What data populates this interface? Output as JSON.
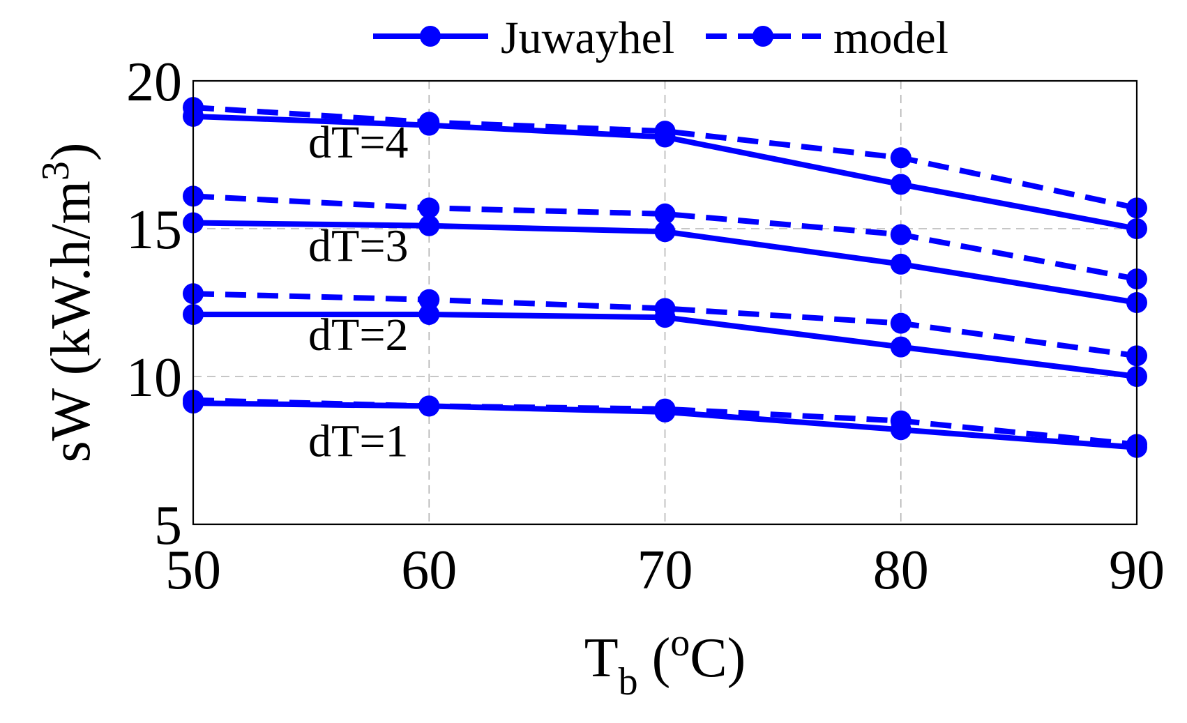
{
  "chart_data": {
    "type": "line",
    "xlabel": {
      "main": "T",
      "sub": "b",
      "pre": " (",
      "sup": "o",
      "post": "C)"
    },
    "ylabel": {
      "main": "sW (kW.h/m",
      "sup": "3",
      "post": ")"
    },
    "x": [
      50,
      60,
      70,
      80,
      90
    ],
    "xlim": [
      50,
      90
    ],
    "ylim": [
      5,
      20
    ],
    "xticks": [
      50,
      60,
      70,
      80,
      90
    ],
    "yticks": [
      5,
      10,
      15,
      20
    ],
    "grid": true,
    "legend_position": "top",
    "color": "#0000ff",
    "legend": [
      {
        "label": "Juwayhel",
        "style": "solid"
      },
      {
        "label": "model",
        "style": "dashed"
      }
    ],
    "series": [
      {
        "group": "dT=1",
        "source": "Juwayhel",
        "style": "solid",
        "values": [
          9.1,
          9.0,
          8.8,
          8.2,
          7.6
        ]
      },
      {
        "group": "dT=1",
        "source": "model",
        "style": "dashed",
        "values": [
          9.2,
          9.0,
          8.9,
          8.5,
          7.7
        ]
      },
      {
        "group": "dT=2",
        "source": "Juwayhel",
        "style": "solid",
        "values": [
          12.1,
          12.1,
          12.0,
          11.0,
          10.0
        ]
      },
      {
        "group": "dT=2",
        "source": "model",
        "style": "dashed",
        "values": [
          12.8,
          12.6,
          12.3,
          11.8,
          10.7
        ]
      },
      {
        "group": "dT=3",
        "source": "Juwayhel",
        "style": "solid",
        "values": [
          15.2,
          15.1,
          14.9,
          13.8,
          12.5
        ]
      },
      {
        "group": "dT=3",
        "source": "model",
        "style": "dashed",
        "values": [
          16.1,
          15.7,
          15.5,
          14.8,
          13.3
        ]
      },
      {
        "group": "dT=4",
        "source": "Juwayhel",
        "style": "solid",
        "values": [
          18.8,
          18.5,
          18.1,
          16.5,
          15.0
        ]
      },
      {
        "group": "dT=4",
        "source": "model",
        "style": "dashed",
        "values": [
          19.1,
          18.6,
          18.3,
          17.4,
          15.7
        ]
      }
    ],
    "annotations": [
      {
        "text": "dT=4",
        "x": 57,
        "y": 17.4
      },
      {
        "text": "dT=3",
        "x": 57,
        "y": 13.9
      },
      {
        "text": "dT=2",
        "x": 57,
        "y": 10.9
      },
      {
        "text": "dT=1",
        "x": 57,
        "y": 7.3
      }
    ]
  }
}
